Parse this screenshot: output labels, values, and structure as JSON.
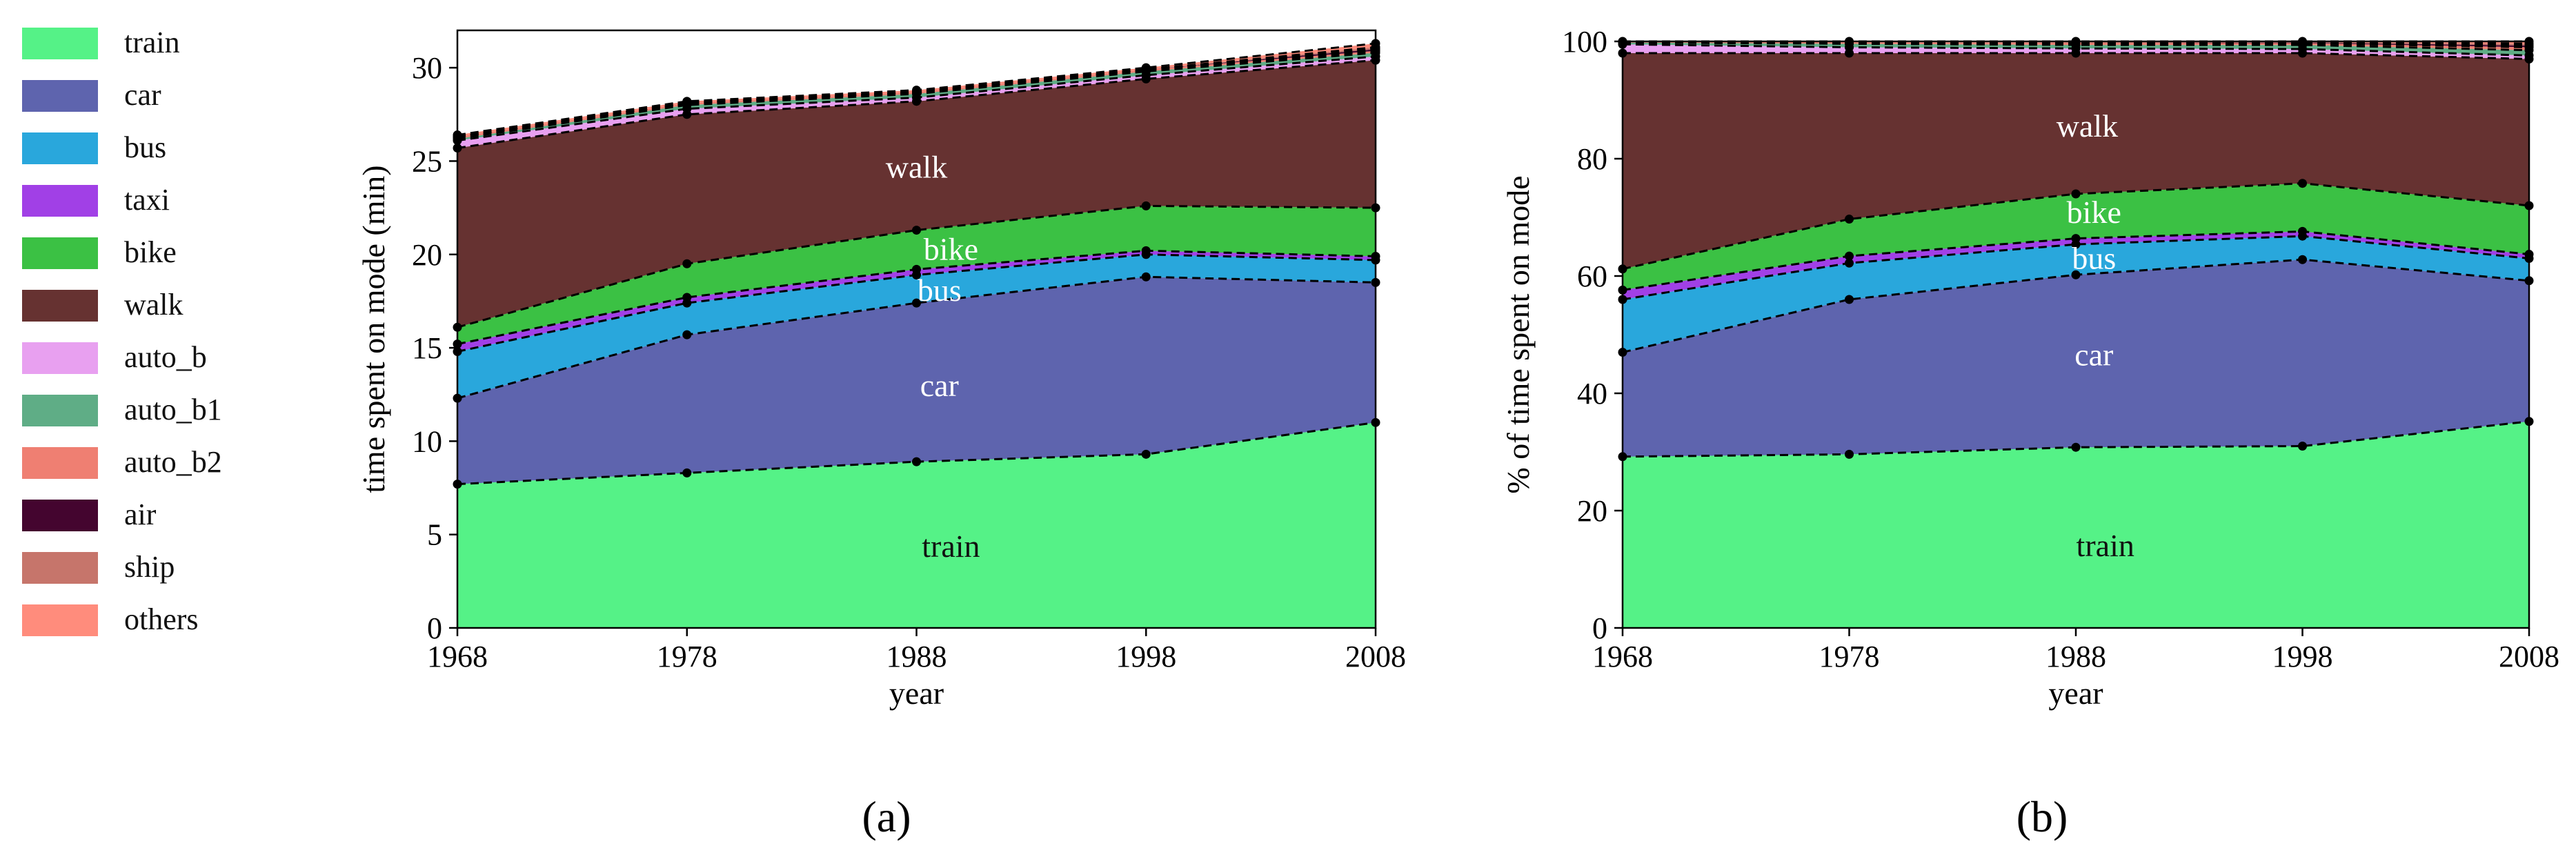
{
  "legend": [
    {
      "key": "train",
      "label": "train",
      "color": "#55F287"
    },
    {
      "key": "car",
      "label": "car",
      "color": "#5E64AE"
    },
    {
      "key": "bus",
      "label": "bus",
      "color": "#29A7DC"
    },
    {
      "key": "taxi",
      "label": "taxi",
      "color": "#A140E6"
    },
    {
      "key": "bike",
      "label": "bike",
      "color": "#3BC144"
    },
    {
      "key": "walk",
      "label": "walk",
      "color": "#663231"
    },
    {
      "key": "auto_b",
      "label": "auto_b",
      "color": "#E8A0F0"
    },
    {
      "key": "auto_b1",
      "label": "auto_b1",
      "color": "#5FAD86"
    },
    {
      "key": "auto_b2",
      "label": "auto_b2",
      "color": "#EF7F72"
    },
    {
      "key": "air",
      "label": "air",
      "color": "#44052F"
    },
    {
      "key": "ship",
      "label": "ship",
      "color": "#C6756B"
    },
    {
      "key": "others",
      "label": "others",
      "color": "#FF8C7C"
    }
  ],
  "panel_labels": {
    "a": "(a)",
    "b": "(b)"
  },
  "chart_data": [
    {
      "type": "area",
      "stacked": true,
      "panel": "(a)",
      "xlabel": "year",
      "ylabel": "time spent on mode (min)",
      "x": [
        1968,
        1978,
        1988,
        1998,
        2008
      ],
      "xticks": [
        "1968",
        "1978",
        "1988",
        "1998",
        "2008"
      ],
      "ylim": [
        0,
        32
      ],
      "yticks": [
        0,
        5,
        10,
        15,
        20,
        25,
        30
      ],
      "series": [
        {
          "name": "train",
          "values": [
            7.7,
            8.3,
            8.9,
            9.3,
            11.0
          ]
        },
        {
          "name": "car",
          "values": [
            4.6,
            7.4,
            8.5,
            9.5,
            7.5
          ]
        },
        {
          "name": "bus",
          "values": [
            2.5,
            1.7,
            1.5,
            1.2,
            1.2
          ]
        },
        {
          "name": "taxi",
          "values": [
            0.4,
            0.3,
            0.3,
            0.2,
            0.2
          ]
        },
        {
          "name": "bike",
          "values": [
            0.9,
            1.8,
            2.1,
            2.4,
            2.6
          ]
        },
        {
          "name": "walk",
          "values": [
            9.6,
            8.0,
            6.9,
            6.8,
            7.9
          ]
        },
        {
          "name": "auto_b",
          "values": [
            0.4,
            0.3,
            0.2,
            0.2,
            0.2
          ]
        },
        {
          "name": "auto_b1",
          "values": [
            0.1,
            0.2,
            0.2,
            0.2,
            0.2
          ]
        },
        {
          "name": "auto_b2",
          "values": [
            0.1,
            0.1,
            0.1,
            0.1,
            0.1
          ]
        },
        {
          "name": "air",
          "values": [
            0.0,
            0.0,
            0.0,
            0.0,
            0.1
          ]
        },
        {
          "name": "ship",
          "values": [
            0.0,
            0.0,
            0.0,
            0.0,
            0.1
          ]
        },
        {
          "name": "others",
          "values": [
            0.1,
            0.1,
            0.1,
            0.1,
            0.2
          ]
        }
      ],
      "annotations": [
        {
          "text": "walk",
          "x": 1988,
          "y": 24.5,
          "color": "#ffffff"
        },
        {
          "text": "bike",
          "x": 1989.5,
          "y": 20.1,
          "color": "#ffffff"
        },
        {
          "text": "bus",
          "x": 1989.0,
          "y": 17.9,
          "color": "#ffffff"
        },
        {
          "text": "car",
          "x": 1989.0,
          "y": 12.8,
          "color": "#ffffff"
        },
        {
          "text": "train",
          "x": 1989.5,
          "y": 4.2,
          "color": "#111111"
        }
      ]
    },
    {
      "type": "area",
      "stacked": true,
      "panel": "(b)",
      "xlabel": "year",
      "ylabel": "% of time spent on mode",
      "x": [
        1968,
        1978,
        1988,
        1998,
        2008
      ],
      "xticks": [
        "1968",
        "1978",
        "1988",
        "1998",
        "2008"
      ],
      "ylim": [
        0,
        100
      ],
      "yticks": [
        0,
        20,
        40,
        60,
        80,
        100
      ],
      "series": [
        {
          "name": "train",
          "values": [
            29.2,
            29.6,
            30.8,
            31.0,
            35.2
          ]
        },
        {
          "name": "car",
          "values": [
            17.8,
            26.4,
            29.4,
            31.8,
            24.0
          ]
        },
        {
          "name": "bus",
          "values": [
            9.0,
            6.2,
            5.2,
            4.0,
            3.8
          ]
        },
        {
          "name": "taxi",
          "values": [
            1.6,
            1.2,
            1.0,
            0.8,
            0.7
          ]
        },
        {
          "name": "bike",
          "values": [
            3.6,
            6.3,
            7.6,
            8.2,
            8.3
          ]
        },
        {
          "name": "walk",
          "values": [
            36.8,
            28.3,
            24.0,
            22.2,
            25.0
          ]
        },
        {
          "name": "auto_b",
          "values": [
            1.5,
            1.0,
            0.8,
            0.7,
            0.6
          ]
        },
        {
          "name": "auto_b1",
          "values": [
            0.3,
            0.6,
            0.6,
            0.7,
            0.9
          ]
        },
        {
          "name": "auto_b2",
          "values": [
            0.1,
            0.2,
            0.3,
            0.3,
            0.5
          ]
        },
        {
          "name": "air",
          "values": [
            0.0,
            0.0,
            0.0,
            0.1,
            0.3
          ]
        },
        {
          "name": "ship",
          "values": [
            0.0,
            0.0,
            0.1,
            0.1,
            0.3
          ]
        },
        {
          "name": "others",
          "values": [
            0.1,
            0.2,
            0.2,
            0.1,
            0.4
          ]
        }
      ],
      "annotations": [
        {
          "text": "walk",
          "x": 1988.5,
          "y": 85.0,
          "color": "#ffffff"
        },
        {
          "text": "bike",
          "x": 1988.8,
          "y": 70.3,
          "color": "#ffffff"
        },
        {
          "text": "bus",
          "x": 1988.8,
          "y": 62.5,
          "color": "#ffffff"
        },
        {
          "text": "car",
          "x": 1988.8,
          "y": 46.0,
          "color": "#ffffff"
        },
        {
          "text": "train",
          "x": 1989.3,
          "y": 13.5,
          "color": "#111111"
        }
      ]
    }
  ]
}
